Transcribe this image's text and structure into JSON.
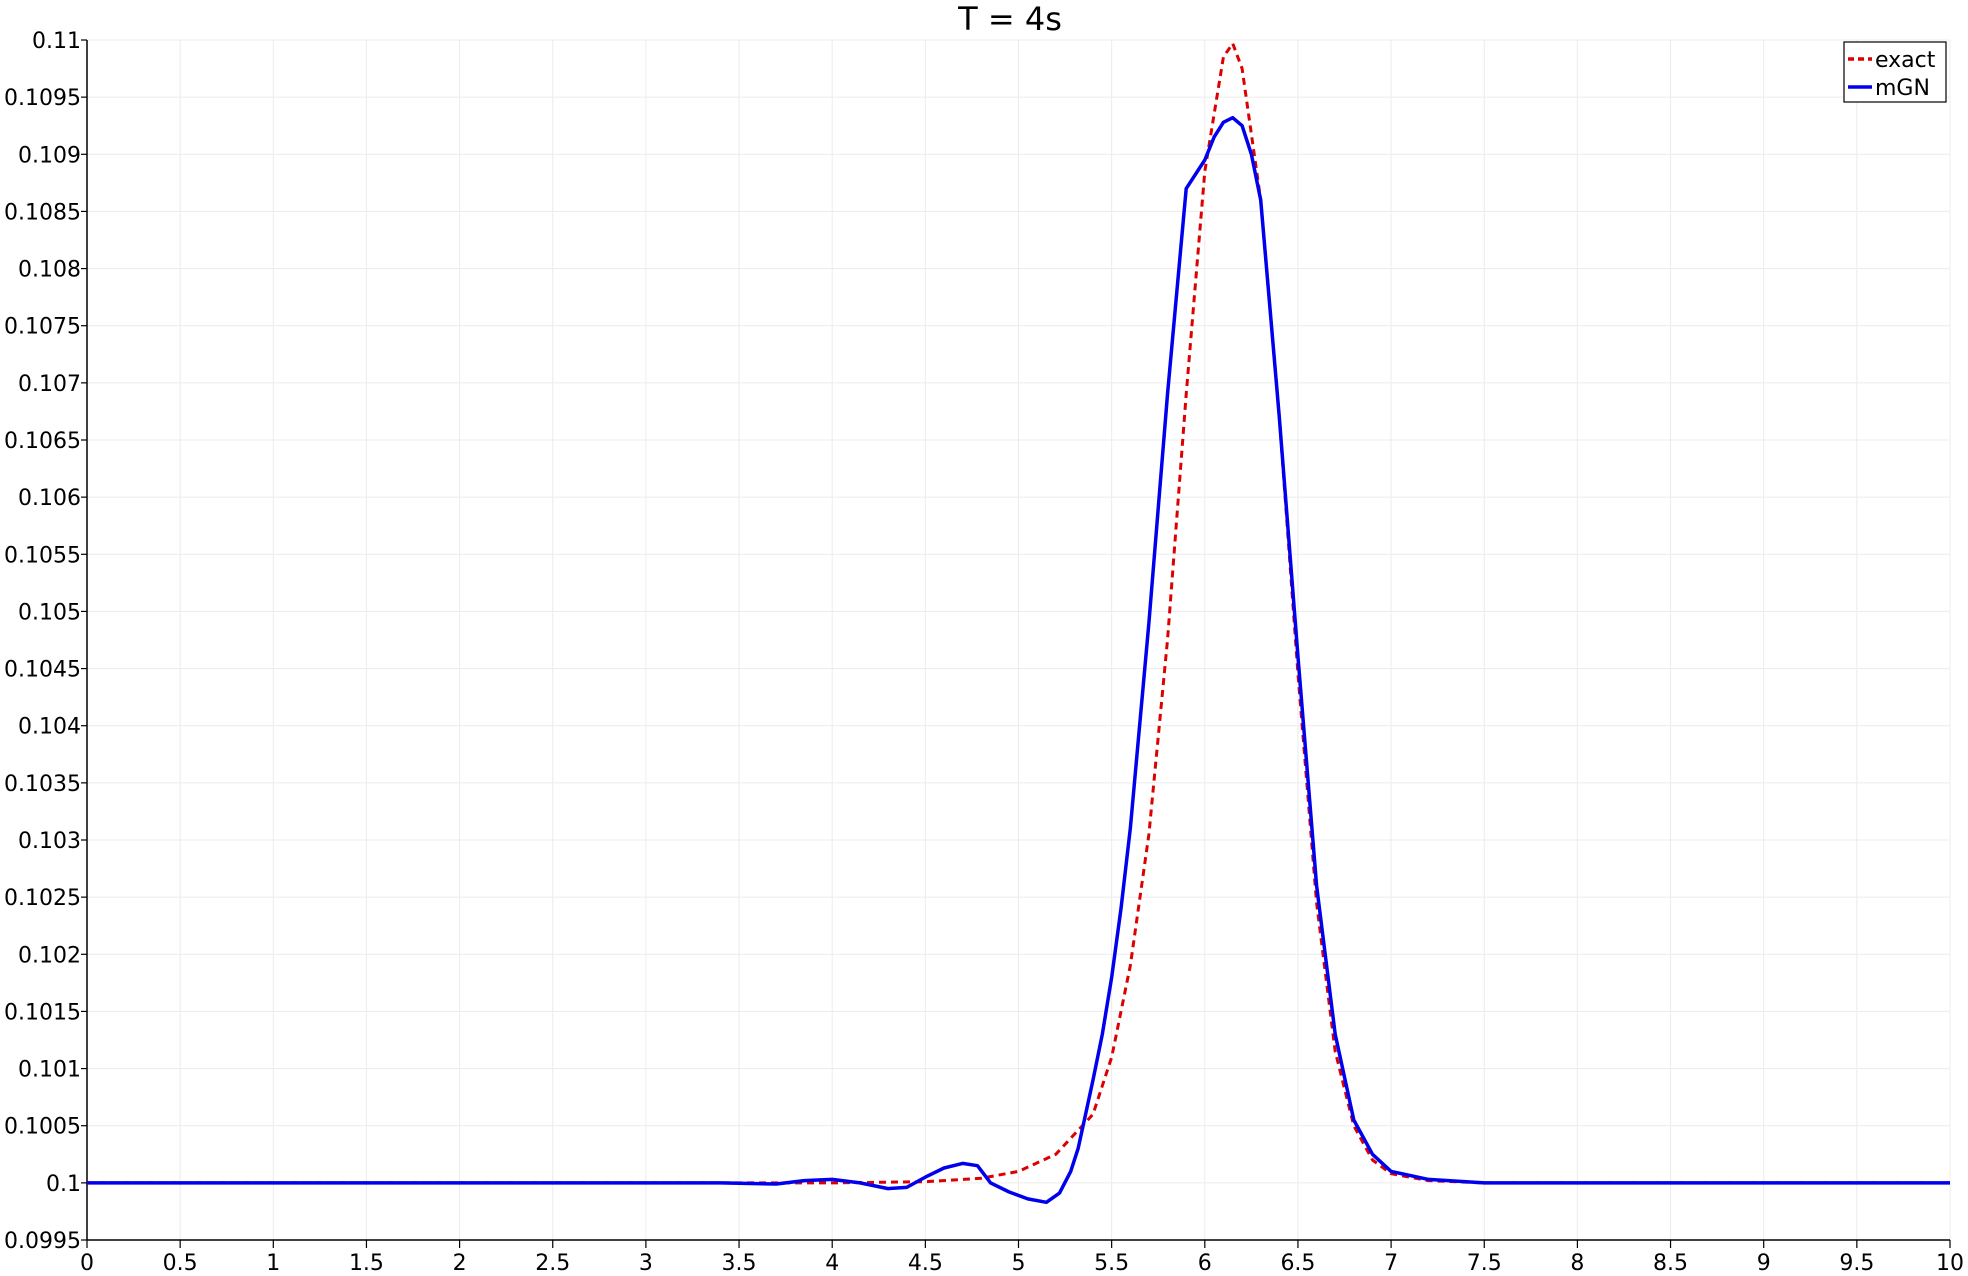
{
  "chart_data": {
    "type": "line",
    "title": "T = 4s",
    "xlabel": "",
    "ylabel": "",
    "xlim": [
      0,
      10
    ],
    "ylim": [
      0.0995,
      0.11
    ],
    "x_ticks": [
      {
        "value": 0,
        "label": "0"
      },
      {
        "value": 0.5,
        "label": "0.5"
      },
      {
        "value": 1,
        "label": "1"
      },
      {
        "value": 1.5,
        "label": "1.5"
      },
      {
        "value": 2,
        "label": "2"
      },
      {
        "value": 2.5,
        "label": "2.5"
      },
      {
        "value": 3,
        "label": "3"
      },
      {
        "value": 3.5,
        "label": "3.5"
      },
      {
        "value": 4,
        "label": "4"
      },
      {
        "value": 4.5,
        "label": "4.5"
      },
      {
        "value": 5,
        "label": "5"
      },
      {
        "value": 5.5,
        "label": "5.5"
      },
      {
        "value": 6,
        "label": "6"
      },
      {
        "value": 6.5,
        "label": "6.5"
      },
      {
        "value": 7,
        "label": "7"
      },
      {
        "value": 7.5,
        "label": "7.5"
      },
      {
        "value": 8,
        "label": "8"
      },
      {
        "value": 8.5,
        "label": "8.5"
      },
      {
        "value": 9,
        "label": "9"
      },
      {
        "value": 9.5,
        "label": "9.5"
      },
      {
        "value": 10,
        "label": "10"
      }
    ],
    "y_ticks": [
      {
        "value": 0.0995,
        "label": "0.0995"
      },
      {
        "value": 0.1,
        "label": "0.1"
      },
      {
        "value": 0.1005,
        "label": "0.1005"
      },
      {
        "value": 0.101,
        "label": "0.101"
      },
      {
        "value": 0.1015,
        "label": "0.1015"
      },
      {
        "value": 0.102,
        "label": "0.102"
      },
      {
        "value": 0.1025,
        "label": "0.1025"
      },
      {
        "value": 0.103,
        "label": "0.103"
      },
      {
        "value": 0.1035,
        "label": "0.1035"
      },
      {
        "value": 0.104,
        "label": "0.104"
      },
      {
        "value": 0.1045,
        "label": "0.1045"
      },
      {
        "value": 0.105,
        "label": "0.105"
      },
      {
        "value": 0.1055,
        "label": "0.1055"
      },
      {
        "value": 0.106,
        "label": "0.106"
      },
      {
        "value": 0.1065,
        "label": "0.1065"
      },
      {
        "value": 0.107,
        "label": "0.107"
      },
      {
        "value": 0.1075,
        "label": "0.1075"
      },
      {
        "value": 0.108,
        "label": "0.108"
      },
      {
        "value": 0.1085,
        "label": "0.1085"
      },
      {
        "value": 0.109,
        "label": "0.109"
      },
      {
        "value": 0.1095,
        "label": "0.1095"
      },
      {
        "value": 0.11,
        "label": "0.11"
      }
    ],
    "grid": true,
    "legend_position": "top-right",
    "series": [
      {
        "name": "exact",
        "color": "#dd0000",
        "style": "dashed",
        "x": [
          0,
          3.0,
          4.0,
          4.5,
          4.8,
          5.0,
          5.2,
          5.4,
          5.5,
          5.6,
          5.7,
          5.8,
          5.9,
          6.0,
          6.1,
          6.15,
          6.2,
          6.3,
          6.4,
          6.5,
          6.6,
          6.7,
          6.8,
          6.9,
          7.0,
          7.2,
          7.5,
          8.0,
          10
        ],
        "y": [
          0.1,
          0.1,
          0.1,
          0.10001,
          0.10004,
          0.1001,
          0.10025,
          0.1006,
          0.1011,
          0.1019,
          0.10305,
          0.10475,
          0.1069,
          0.10885,
          0.10985,
          0.10997,
          0.10975,
          0.1086,
          0.1067,
          0.10445,
          0.10245,
          0.10115,
          0.1005,
          0.1002,
          0.10008,
          0.10002,
          0.1,
          0.1,
          0.1
        ]
      },
      {
        "name": "mGN",
        "color": "#0000ee",
        "style": "solid",
        "x": [
          0,
          0.3,
          0.6,
          1.5,
          2.5,
          3.0,
          3.4,
          3.7,
          3.85,
          4.0,
          4.15,
          4.3,
          4.4,
          4.5,
          4.6,
          4.7,
          4.78,
          4.85,
          4.95,
          5.05,
          5.15,
          5.22,
          5.28,
          5.32,
          5.36,
          5.4,
          5.45,
          5.5,
          5.55,
          5.6,
          5.7,
          5.8,
          5.9,
          6.0,
          6.05,
          6.1,
          6.15,
          6.2,
          6.25,
          6.3,
          6.4,
          6.5,
          6.6,
          6.7,
          6.8,
          6.9,
          7.0,
          7.2,
          7.5,
          8.0,
          10
        ],
        "y": [
          0.1,
          0.1,
          0.1,
          0.1,
          0.1,
          0.1,
          0.1,
          0.09999,
          0.10002,
          0.10003,
          0.1,
          0.09995,
          0.09996,
          0.10005,
          0.10013,
          0.10017,
          0.10015,
          0.1,
          0.09992,
          0.09986,
          0.09983,
          0.09991,
          0.1001,
          0.1003,
          0.1006,
          0.1009,
          0.1013,
          0.1018,
          0.1024,
          0.1031,
          0.1049,
          0.1069,
          0.1087,
          0.10895,
          0.10915,
          0.10928,
          0.10932,
          0.10925,
          0.109,
          0.1086,
          0.1067,
          0.1046,
          0.1026,
          0.1013,
          0.10055,
          0.10025,
          0.1001,
          0.10003,
          0.1,
          0.1,
          0.1
        ]
      }
    ]
  }
}
